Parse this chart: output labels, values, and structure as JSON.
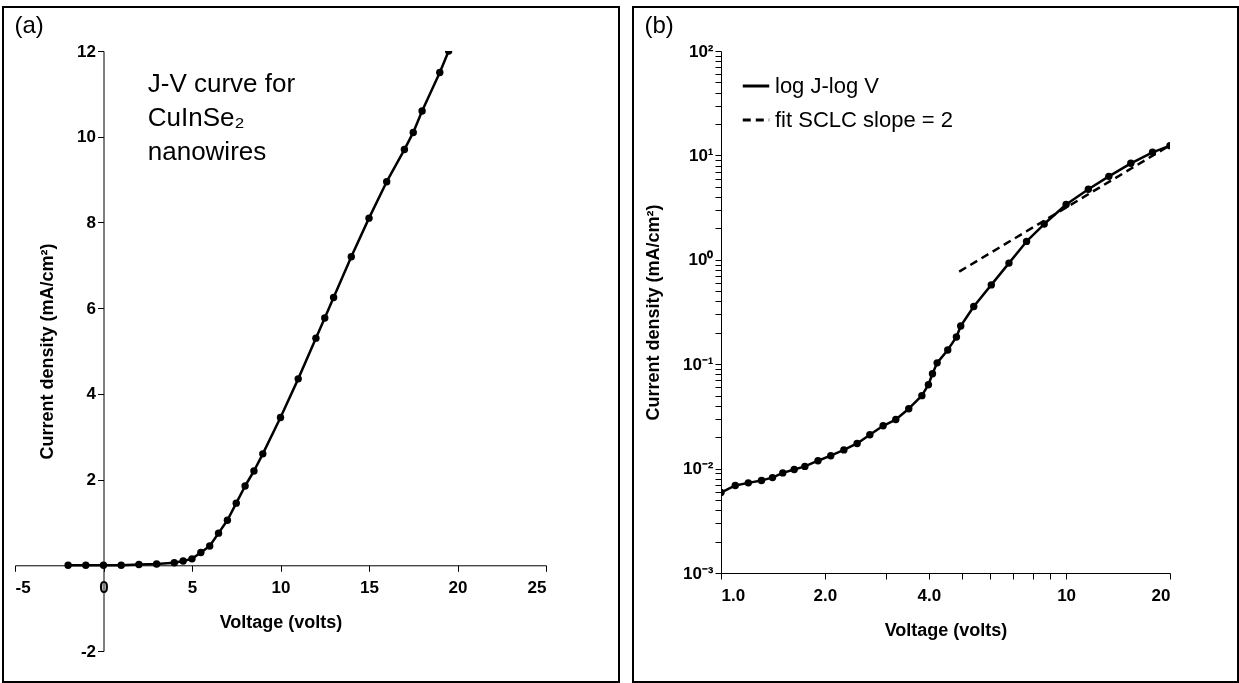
{
  "chart_data": [
    {
      "type": "line",
      "title": "(a)",
      "xlabel": "Voltage (volts)",
      "ylabel": "Current density (mA/cm²)",
      "annotations": [
        "J-V curve for CuInSe₂ nanowires"
      ],
      "marker": "circle",
      "xlim": [
        -5,
        25
      ],
      "ylim": [
        -2,
        12
      ],
      "xticks": [
        -5,
        0,
        5,
        10,
        15,
        20,
        25
      ],
      "yticks": [
        -2,
        {
          "value": 0,
          "label": null
        },
        2,
        4,
        6,
        8,
        10,
        12
      ],
      "series": [
        {
          "color": "#000000",
          "x": [
            -2,
            -1,
            0,
            1,
            2,
            3,
            4,
            4.5,
            5,
            5.5,
            6,
            6.5,
            7,
            7.5,
            8,
            8.5,
            9,
            10,
            11,
            12,
            12.5,
            13,
            14,
            15,
            16,
            17,
            17.5,
            18,
            19,
            19.5
          ],
          "values": [
            0,
            0,
            0,
            0,
            0.02,
            0.03,
            0.06,
            0.1,
            0.15,
            0.3,
            0.45,
            0.75,
            1.05,
            1.45,
            1.85,
            2.2,
            2.6,
            3.45,
            4.35,
            5.3,
            5.77,
            6.25,
            7.2,
            8.1,
            8.95,
            9.7,
            10.1,
            10.6,
            11.5,
            12.0
          ]
        }
      ]
    },
    {
      "type": "line",
      "title": "(b)",
      "xlabel": "Voltage (volts)",
      "ylabel": "Current density (mA/cm²)",
      "log": "xy",
      "legend": "top left",
      "marker": "circle",
      "xlim": [
        1,
        20
      ],
      "ylim": [
        0.001,
        100
      ],
      "xticks": [
        {
          "value": 1,
          "label": "1.0"
        },
        {
          "value": 2,
          "label": "2.0"
        },
        {
          "value": 3,
          "label": null
        },
        {
          "value": 4,
          "label": "4.0"
        },
        {
          "value": 5,
          "label": null
        },
        {
          "value": 6,
          "label": null
        },
        {
          "value": 7,
          "label": null
        },
        {
          "value": 8,
          "label": null
        },
        {
          "value": 9,
          "label": null
        },
        10,
        20
      ],
      "yticks": [
        {
          "value": 0.001,
          "label": "10⁻³"
        },
        {
          "value": 0.002,
          "label": null
        },
        {
          "value": 0.003,
          "label": null
        },
        {
          "value": 0.004,
          "label": null
        },
        {
          "value": 0.005,
          "label": null
        },
        {
          "value": 0.006,
          "label": null
        },
        {
          "value": 0.007,
          "label": null
        },
        {
          "value": 0.008,
          "label": null
        },
        {
          "value": 0.009,
          "label": null
        },
        {
          "value": 0.01,
          "label": "10⁻²"
        },
        {
          "value": 0.02,
          "label": null
        },
        {
          "value": 0.03,
          "label": null
        },
        {
          "value": 0.04,
          "label": null
        },
        {
          "value": 0.05,
          "label": null
        },
        {
          "value": 0.06,
          "label": null
        },
        {
          "value": 0.07,
          "label": null
        },
        {
          "value": 0.08,
          "label": null
        },
        {
          "value": 0.09,
          "label": null
        },
        {
          "value": 0.1,
          "label": "10⁻¹"
        },
        {
          "value": 0.2,
          "label": null
        },
        {
          "value": 0.3,
          "label": null
        },
        {
          "value": 0.4,
          "label": null
        },
        {
          "value": 0.5,
          "label": null
        },
        {
          "value": 0.6,
          "label": null
        },
        {
          "value": 0.7,
          "label": null
        },
        {
          "value": 0.8,
          "label": null
        },
        {
          "value": 0.9,
          "label": null
        },
        {
          "value": 1,
          "label": "10⁰"
        },
        {
          "value": 2,
          "label": null
        },
        {
          "value": 3,
          "label": null
        },
        {
          "value": 4,
          "label": null
        },
        {
          "value": 5,
          "label": null
        },
        {
          "value": 6,
          "label": null
        },
        {
          "value": 7,
          "label": null
        },
        {
          "value": 8,
          "label": null
        },
        {
          "value": 9,
          "label": null
        },
        {
          "value": 10,
          "label": "10¹"
        },
        {
          "value": 20,
          "label": null
        },
        {
          "value": 30,
          "label": null
        },
        {
          "value": 40,
          "label": null
        },
        {
          "value": 50,
          "label": null
        },
        {
          "value": 60,
          "label": null
        },
        {
          "value": 70,
          "label": null
        },
        {
          "value": 80,
          "label": null
        },
        {
          "value": 90,
          "label": null
        },
        {
          "value": 100,
          "label": "10²"
        }
      ],
      "series": [
        {
          "name": "log J-log V",
          "color": "#000000",
          "x": [
            1,
            1.1,
            1.2,
            1.31,
            1.41,
            1.51,
            1.63,
            1.75,
            1.91,
            2.08,
            2.27,
            2.48,
            2.7,
            2.95,
            3.21,
            3.5,
            3.82,
            3.99,
            4.1,
            4.23,
            4.54,
            4.81,
            4.95,
            5.4,
            6.07,
            6.83,
            7.68,
            8.64,
            10,
            11.6,
            13.3,
            15.4,
            17.8,
            20
          ],
          "values": [
            0.0059,
            0.0069,
            0.0073,
            0.0077,
            0.0082,
            0.0091,
            0.0098,
            0.0105,
            0.0119,
            0.0133,
            0.0151,
            0.0174,
            0.0211,
            0.0257,
            0.0295,
            0.0375,
            0.05,
            0.0636,
            0.081,
            0.103,
            0.137,
            0.182,
            0.232,
            0.357,
            0.575,
            0.93,
            1.5,
            2.2,
            3.39,
            4.74,
            6.3,
            8.4,
            10.7,
            12.4
          ]
        },
        {
          "name": "fit SCLC slope = 2",
          "type": "line",
          "color": "#000000",
          "marker": "none",
          "line_style": "dashed",
          "x": [
            4.9,
            20
          ],
          "values": [
            0.77,
            12.5
          ]
        }
      ]
    }
  ]
}
